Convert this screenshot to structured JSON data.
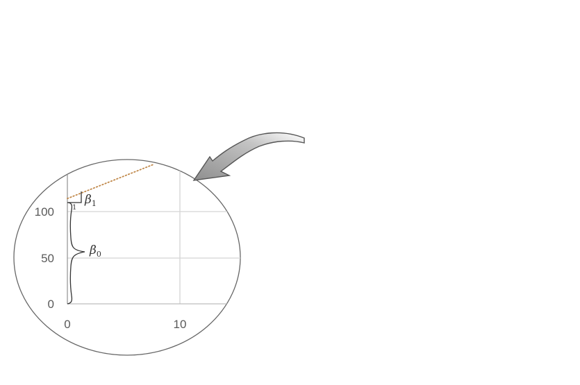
{
  "chart_data": {
    "type": "line",
    "x_ticks": [
      "0",
      "10"
    ],
    "y_ticks": [
      "0",
      "50",
      "100"
    ],
    "xlim": [
      0,
      14
    ],
    "ylim": [
      0,
      150
    ],
    "grid": true,
    "series": [
      {
        "style": "dotted",
        "color": "#C0884A",
        "x": [
          0,
          7.6
        ],
        "y": [
          115,
          152
        ]
      }
    ],
    "annotations": {
      "intercept": {
        "symbol": "β",
        "subscript": "0",
        "from_y": 0,
        "to_y": 115
      },
      "slope": {
        "symbol": "β",
        "subscript": "1",
        "run": "1"
      }
    },
    "colors": {
      "ellipse": "#666666",
      "grid": "#d4d4d4",
      "axis": "#999999",
      "regression_line": "#C0884A",
      "arrow_fill": "#9a9a9a",
      "arrow_stroke": "#555555"
    }
  },
  "decorations": {
    "callout_arrow": "curved-arrow-icon"
  }
}
